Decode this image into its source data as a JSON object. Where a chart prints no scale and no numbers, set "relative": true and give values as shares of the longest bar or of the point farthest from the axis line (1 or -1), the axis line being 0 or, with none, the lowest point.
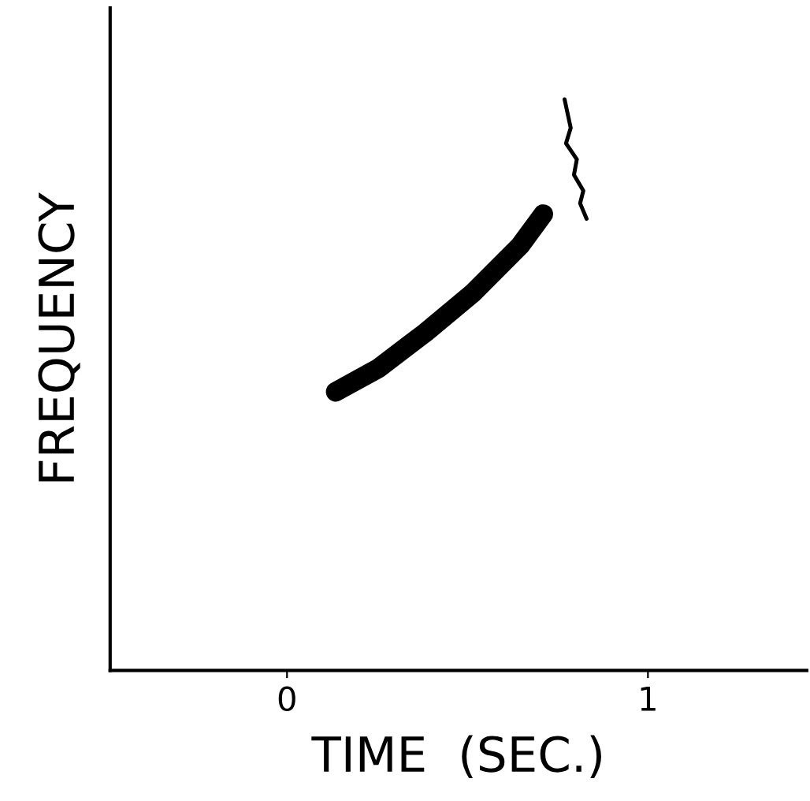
{
  "chart_data": {
    "type": "line",
    "relative": true,
    "xlabel": "TIME  (SEC.)",
    "ylabel": "FREQUENCY",
    "xlim": [
      -0.49,
      1.44
    ],
    "xticks": [
      0,
      1
    ],
    "grid": false,
    "legend": false,
    "marker": "none",
    "line_style": "solid",
    "series": [
      {
        "color": "#000000",
        "x": [
          0.135,
          0.253,
          0.384,
          0.515,
          0.646,
          0.71
        ],
        "values": [
          0.488,
          0.529,
          0.592,
          0.661,
          0.744,
          0.799
        ]
      },
      {
        "color": "#000000",
        "x": [
          0.769,
          0.786,
          0.773,
          0.803,
          0.795,
          0.821,
          0.812,
          0.83
        ],
        "values": [
          1.0,
          0.95,
          0.923,
          0.895,
          0.868,
          0.84,
          0.818,
          0.791
        ]
      }
    ]
  }
}
